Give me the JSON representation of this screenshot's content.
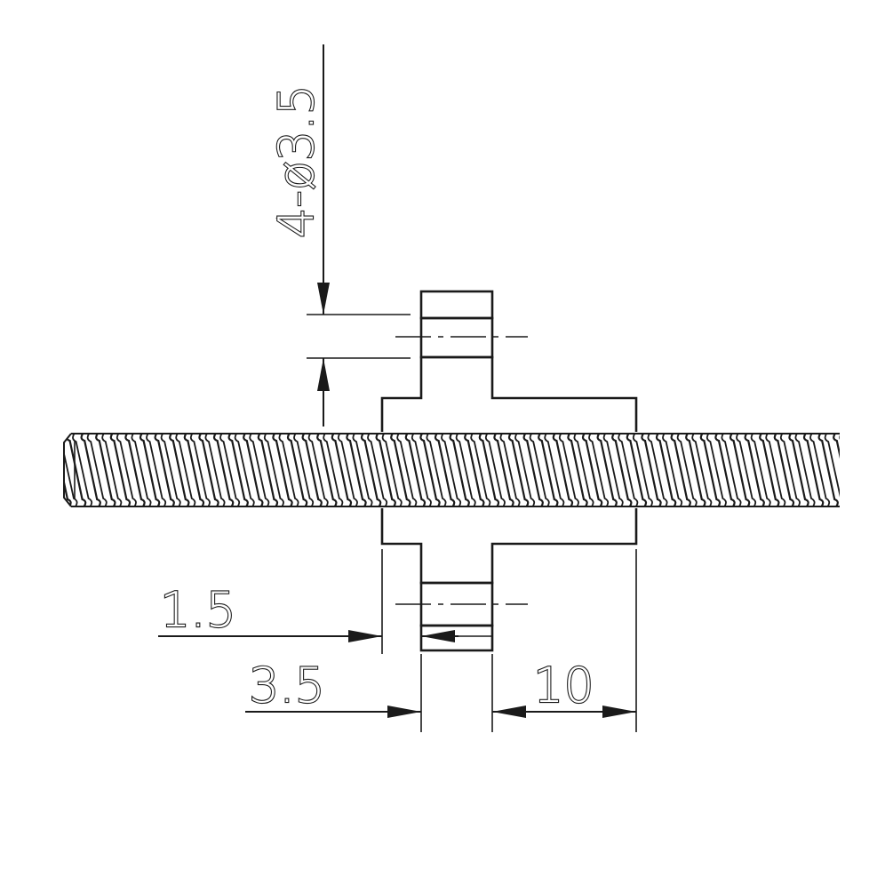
{
  "labels": {
    "hole_callout": "4-ø3.5",
    "dim_flange_offset": "1.5",
    "dim_flange_thickness": "3.5",
    "dim_body_length": "10"
  },
  "colors": {
    "ink": "#1a1a1a",
    "paper": "#ffffff",
    "thread_shade": "#777777"
  }
}
